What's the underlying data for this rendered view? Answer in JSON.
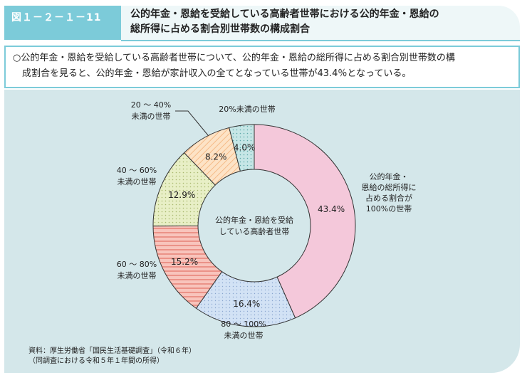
{
  "figure": {
    "number": "図１－２－１－11",
    "title_line1": "公的年金・恩給を受給している高齢者世帯における公的年金・恩給の",
    "title_line2": "総所得に占める割合別世帯数の構成割合"
  },
  "summary": {
    "line1": "○公的年金・恩給を受給している高齢者世帯について、公的年金・恩給の総所得に占める割合別世帯数の構",
    "line2": "　成割合を見ると、公的年金・恩給が家計収入の全てとなっている世帯が43.4％となっている。"
  },
  "chart_data": {
    "type": "pie",
    "donut": true,
    "center_label": [
      "公的年金・恩給を受給",
      "している高齢者世帯"
    ],
    "unit": "%",
    "slices": [
      {
        "label": [
          "公的年金・",
          "恩給の総所得に",
          "占める割合が",
          "100%の世帯"
        ],
        "value": 43.4,
        "value_label": "43.4%",
        "color": "#f4c7d9"
      },
      {
        "label": [
          "80 ～ 100%",
          "未満の世帯"
        ],
        "value": 16.4,
        "value_label": "16.4%",
        "color": "#cfe0f4"
      },
      {
        "label": [
          "60 ～ 80%",
          "未満の世帯"
        ],
        "value": 15.2,
        "value_label": "15.2%",
        "color": "#f6b0a8"
      },
      {
        "label": [
          "40 ～ 60%",
          "未満の世帯"
        ],
        "value": 12.9,
        "value_label": "12.9%",
        "color": "#e4ecbf"
      },
      {
        "label": [
          "20 ～ 40%",
          "未満の世帯"
        ],
        "value": 8.2,
        "value_label": "8.2%",
        "color": "#fde0c0"
      },
      {
        "label": [
          "20%未満の世帯"
        ],
        "value": 4.0,
        "value_label": "4.0%",
        "color": "#bfe3e3"
      }
    ]
  },
  "source": {
    "line1": "資料：厚生労働省「国民生活基礎調査」（令和６年）",
    "line2": "（同調査における令和５年１年間の所得）"
  }
}
